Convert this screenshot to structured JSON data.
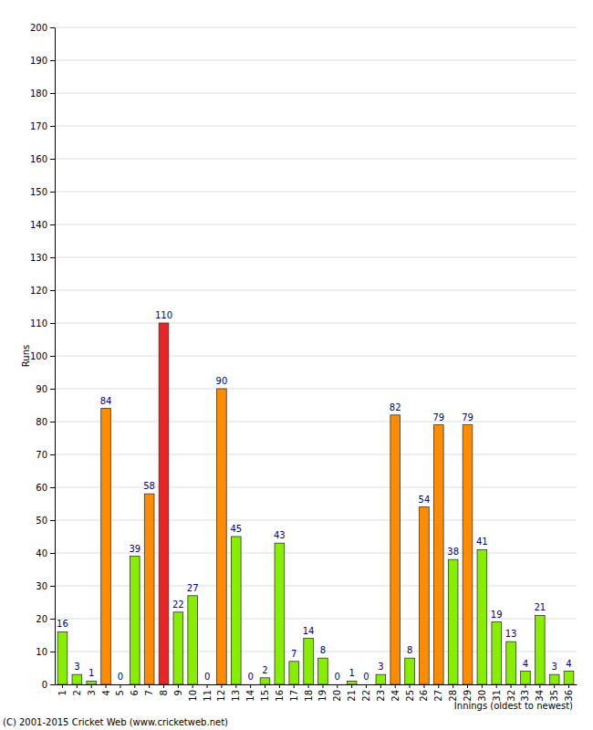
{
  "chart_data": {
    "type": "bar",
    "y_label": "Runs",
    "x_label": "Innings (oldest to newest)",
    "annotations": [
      "(C) 2001-2015 Cricket Web (www.cricketweb.net)"
    ],
    "categories": [
      "1",
      "2",
      "3",
      "4",
      "5",
      "6",
      "7",
      "8",
      "9",
      "10",
      "11",
      "12",
      "13",
      "14",
      "15",
      "16",
      "17",
      "18",
      "19",
      "20",
      "21",
      "22",
      "23",
      "24",
      "25",
      "26",
      "27",
      "28",
      "29",
      "30",
      "31",
      "32",
      "33",
      "34",
      "35",
      "36"
    ],
    "values": [
      16,
      3,
      1,
      84,
      0,
      39,
      58,
      110,
      22,
      27,
      0,
      90,
      45,
      0,
      2,
      43,
      7,
      14,
      8,
      0,
      1,
      0,
      3,
      82,
      8,
      54,
      79,
      38,
      79,
      41,
      19,
      13,
      4,
      21,
      3,
      4
    ],
    "colors": [
      "#88ee00",
      "#88ee00",
      "#88ee00",
      "#ff8c00",
      "#88ee00",
      "#88ee00",
      "#ff8c00",
      "#ee2222",
      "#88ee00",
      "#88ee00",
      "#88ee00",
      "#ff8c00",
      "#88ee00",
      "#88ee00",
      "#88ee00",
      "#88ee00",
      "#88ee00",
      "#88ee00",
      "#88ee00",
      "#88ee00",
      "#88ee00",
      "#88ee00",
      "#88ee00",
      "#ff8c00",
      "#88ee00",
      "#ff8c00",
      "#ff8c00",
      "#88ee00",
      "#ff8c00",
      "#88ee00",
      "#88ee00",
      "#88ee00",
      "#88ee00",
      "#88ee00",
      "#88ee00",
      "#88ee00"
    ],
    "ylim": [
      0,
      200
    ],
    "yticks": [
      0,
      10,
      20,
      30,
      40,
      50,
      60,
      70,
      80,
      90,
      100,
      110,
      120,
      130,
      140,
      150,
      160,
      170,
      180,
      190,
      200
    ],
    "grid": true,
    "data_labels": true
  }
}
